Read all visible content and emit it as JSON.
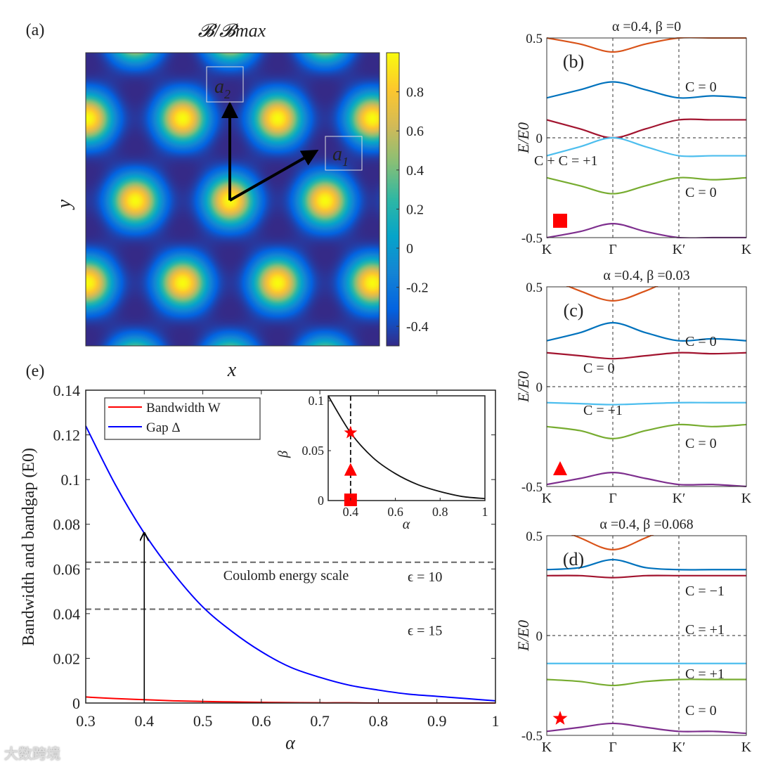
{
  "watermark": "大数跨境",
  "chart_data": [
    {
      "panel": "(a)",
      "type": "heatmap",
      "title": "𝓑/𝓑max",
      "xlabel": "x",
      "ylabel": "y",
      "description_vectors": [
        "a1",
        "a2"
      ],
      "colorbar": {
        "range": [
          -0.5,
          1.0
        ],
        "ticks": [
          0.8,
          0.6,
          0.4,
          0.2,
          0,
          -0.2,
          -0.4
        ],
        "tick_labels": [
          "0.8",
          "0.6",
          "0.4",
          "0.2",
          "0",
          "-0.2",
          "-0.4"
        ]
      }
    },
    {
      "panel": "(b)",
      "type": "line",
      "title": "α =0.4, β =0",
      "ylabel": "E/E0",
      "ylim": [
        -0.5,
        0.5
      ],
      "yticks": [
        "0.5",
        "0",
        "-0.5"
      ],
      "x_ticks": [
        "K",
        "Γ",
        "K′",
        "K"
      ],
      "marker": "square",
      "annotations": [
        {
          "text": "C = 0",
          "color": "#0072BD"
        },
        {
          "text": "C + C = +1",
          "color": "#222222"
        },
        {
          "text": "C = 0",
          "color": "#77AC30"
        }
      ],
      "series": [
        {
          "name": "band-orange",
          "color": "#D95319",
          "values": [
            0.5,
            0.47,
            0.43,
            0.47,
            0.5,
            0.5,
            0.5
          ]
        },
        {
          "name": "band-blue",
          "color": "#0072BD",
          "values": [
            0.2,
            0.24,
            0.28,
            0.24,
            0.2,
            0.21,
            0.2
          ]
        },
        {
          "name": "band-red",
          "color": "#A2142F",
          "values": [
            0.09,
            0.045,
            0.0,
            0.045,
            0.09,
            0.09,
            0.09
          ]
        },
        {
          "name": "band-lightblue",
          "color": "#4DBEEE",
          "values": [
            -0.09,
            -0.045,
            0.0,
            -0.045,
            -0.09,
            -0.09,
            -0.09
          ]
        },
        {
          "name": "band-green",
          "color": "#77AC30",
          "values": [
            -0.2,
            -0.24,
            -0.28,
            -0.24,
            -0.2,
            -0.21,
            -0.2
          ]
        },
        {
          "name": "band-purple",
          "color": "#7E2F8E",
          "values": [
            -0.5,
            -0.47,
            -0.43,
            -0.47,
            -0.5,
            -0.5,
            -0.5
          ]
        }
      ]
    },
    {
      "panel": "(c)",
      "type": "line",
      "title": "α =0.4, β =0.03",
      "ylabel": "E/E0",
      "ylim": [
        -0.5,
        0.5
      ],
      "yticks": [
        "0.5",
        "0",
        "-0.5"
      ],
      "x_ticks": [
        "K",
        "Γ",
        "K′",
        "K"
      ],
      "marker": "triangle",
      "annotations": [
        {
          "text": "C = 0",
          "color": "#0072BD"
        },
        {
          "text": "C = 0",
          "color": "#A2142F"
        },
        {
          "text": "C = +1",
          "color": "#4DBEEE"
        },
        {
          "text": "C = 0",
          "color": "#77AC30"
        }
      ],
      "series": [
        {
          "name": "band-orange",
          "color": "#D95319",
          "values": [
            0.55,
            0.48,
            0.43,
            0.48,
            0.55,
            0.56,
            0.56
          ]
        },
        {
          "name": "band-blue",
          "color": "#0072BD",
          "values": [
            0.23,
            0.27,
            0.32,
            0.27,
            0.23,
            0.24,
            0.23
          ]
        },
        {
          "name": "band-red",
          "color": "#A2142F",
          "values": [
            0.17,
            0.155,
            0.14,
            0.155,
            0.17,
            0.165,
            0.17
          ]
        },
        {
          "name": "band-lightblue",
          "color": "#4DBEEE",
          "values": [
            -0.08,
            -0.085,
            -0.09,
            -0.085,
            -0.08,
            -0.08,
            -0.08
          ]
        },
        {
          "name": "band-green",
          "color": "#77AC30",
          "values": [
            -0.2,
            -0.22,
            -0.26,
            -0.22,
            -0.19,
            -0.2,
            -0.19
          ]
        },
        {
          "name": "band-purple",
          "color": "#7E2F8E",
          "values": [
            -0.49,
            -0.46,
            -0.43,
            -0.46,
            -0.49,
            -0.49,
            -0.5
          ]
        }
      ]
    },
    {
      "panel": "(d)",
      "type": "line",
      "title": "α =0.4, β =0.068",
      "ylabel": "E/E0",
      "ylim": [
        -0.5,
        0.5
      ],
      "yticks": [
        "0.5",
        "0",
        "-0.5"
      ],
      "x_ticks": [
        "K",
        "Γ",
        "K′",
        "K"
      ],
      "marker": "star",
      "annotations": [
        {
          "text": "C = −1",
          "color": "#0072BD"
        },
        {
          "text": "C = +1",
          "color": "#A2142F"
        },
        {
          "text": "C = +1",
          "color": "#4DBEEE"
        },
        {
          "text": "C = 0",
          "color": "#77AC30"
        }
      ],
      "series": [
        {
          "name": "band-orange",
          "color": "#D95319",
          "values": [
            0.56,
            0.49,
            0.43,
            0.49,
            0.56,
            0.57,
            0.57
          ]
        },
        {
          "name": "band-blue",
          "color": "#0072BD",
          "values": [
            0.33,
            0.34,
            0.38,
            0.34,
            0.33,
            0.33,
            0.33
          ]
        },
        {
          "name": "band-red",
          "color": "#A2142F",
          "values": [
            0.3,
            0.3,
            0.29,
            0.3,
            0.3,
            0.3,
            0.3
          ]
        },
        {
          "name": "band-lightblue",
          "color": "#4DBEEE",
          "values": [
            -0.14,
            -0.14,
            -0.14,
            -0.14,
            -0.14,
            -0.14,
            -0.14
          ]
        },
        {
          "name": "band-green",
          "color": "#77AC30",
          "values": [
            -0.22,
            -0.23,
            -0.25,
            -0.23,
            -0.22,
            -0.22,
            -0.22
          ]
        },
        {
          "name": "band-purple",
          "color": "#7E2F8E",
          "values": [
            -0.48,
            -0.46,
            -0.44,
            -0.46,
            -0.48,
            -0.48,
            -0.49
          ]
        }
      ]
    },
    {
      "panel": "(e)",
      "type": "line",
      "xlabel": "α",
      "ylabel": "Bandwidth and bandgap (E0)",
      "xlim": [
        0.3,
        1.0
      ],
      "ylim": [
        0,
        0.14
      ],
      "xticks": [
        "0.3",
        "0.4",
        "0.5",
        "0.6",
        "0.7",
        "0.8",
        "0.9",
        "1"
      ],
      "yticks": [
        "0",
        "0.02",
        "0.04",
        "0.06",
        "0.08",
        "0.1",
        "0.12",
        "0.14"
      ],
      "legend": {
        "placement": "top-left",
        "entries": [
          "Bandwidth W",
          "Gap Δ"
        ]
      },
      "x": [
        0.3,
        0.35,
        0.4,
        0.45,
        0.5,
        0.55,
        0.6,
        0.65,
        0.7,
        0.75,
        0.8,
        0.85,
        0.9,
        0.95,
        1.0
      ],
      "series": [
        {
          "name": "Bandwidth W",
          "color": "#FF0000",
          "values": [
            0.0027,
            0.002,
            0.0015,
            0.001,
            0.0007,
            0.0005,
            0.0003,
            0.0002,
            0.0001,
            0.0001,
            0.0,
            0.0,
            0.0,
            0.0,
            0.0
          ]
        },
        {
          "name": "Gap Δ",
          "color": "#0000FF",
          "values": [
            0.124,
            0.098,
            0.076,
            0.058,
            0.043,
            0.032,
            0.023,
            0.016,
            0.0115,
            0.008,
            0.0058,
            0.004,
            0.003,
            0.002,
            0.001
          ]
        }
      ],
      "hlines": [
        {
          "y": 0.063,
          "label": "ϵ = 10"
        },
        {
          "y": 0.042,
          "label": "ϵ = 15"
        }
      ],
      "annotation": "Coulomb energy scale",
      "arrow": {
        "x": 0.4,
        "from": 0,
        "to": 0.076
      },
      "inset": {
        "xlabel": "α",
        "ylabel": "β",
        "xlim": [
          0.3,
          1.0
        ],
        "ylim": [
          0,
          0.105
        ],
        "xticks": [
          "0.4",
          "0.6",
          "0.8",
          "1"
        ],
        "yticks": [
          "0",
          "0.05",
          "0.1"
        ],
        "x": [
          0.3,
          0.4,
          0.5,
          0.6,
          0.7,
          0.8,
          0.9,
          1.0
        ],
        "values": [
          0.105,
          0.068,
          0.043,
          0.027,
          0.016,
          0.009,
          0.004,
          0.002
        ],
        "vline": 0.4,
        "markers": [
          {
            "shape": "star",
            "alpha": 0.4,
            "beta": 0.068
          },
          {
            "shape": "triangle",
            "alpha": 0.4,
            "beta": 0.03
          },
          {
            "shape": "square",
            "alpha": 0.4,
            "beta": 0.0
          }
        ]
      }
    }
  ]
}
